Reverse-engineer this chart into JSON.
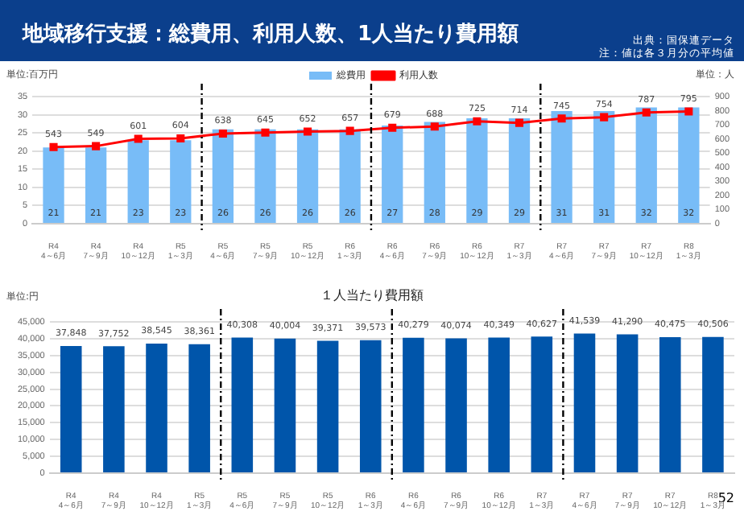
{
  "chart_data": [
    {
      "type": "bar",
      "title": "地域移行支援：総費用、利用人数、1人当たり費用額",
      "ylabel": "単位:百万円",
      "y2label": "単位：人",
      "annotations": [
        "出典：国保連データ",
        "注：値は各３月分の平均値"
      ],
      "categories": [
        "R4\n4～6月",
        "R4\n7～9月",
        "R4\n10～12月",
        "R5\n1～3月",
        "R5\n4～6月",
        "R5\n7～9月",
        "R5\n10～12月",
        "R6\n1～3月",
        "R6\n4～6月",
        "R6\n7～9月",
        "R6\n10～12月",
        "R7\n1～3月",
        "R7\n4～6月",
        "R7\n7～9月",
        "R7\n10～12月",
        "R8\n1～3月"
      ],
      "series": [
        {
          "name": "総費用",
          "color": "#78bcf7",
          "values": [
            21,
            21,
            23,
            23,
            26,
            26,
            26,
            26,
            27,
            28,
            29,
            29,
            31,
            31,
            32,
            32
          ]
        },
        {
          "name": "利用人数",
          "type": "line",
          "axis": "y2",
          "color": "#ff0000",
          "marker": "square",
          "values": [
            543,
            549,
            601,
            604,
            638,
            645,
            652,
            657,
            679,
            688,
            725,
            714,
            745,
            754,
            787,
            795
          ]
        }
      ],
      "ylim": [
        0,
        35
      ],
      "yticks": [
        0,
        5,
        10,
        15,
        20,
        25,
        30,
        35
      ],
      "y2lim": [
        0,
        900
      ],
      "y2ticks": [
        0,
        100,
        200,
        300,
        400,
        500,
        600,
        700,
        800,
        900
      ],
      "data_labels": true,
      "grid": "y",
      "legend": "top"
    },
    {
      "type": "bar",
      "title": "１人当たり費用額",
      "ylabel": "単位:円",
      "annotations": [
        "52"
      ],
      "categories": [
        "R4\n4～6月",
        "R4\n7～9月",
        "R4\n10～12月",
        "R5\n1～3月",
        "R5\n4～6月",
        "R5\n7～9月",
        "R5\n10～12月",
        "R6\n1～3月",
        "R6\n4～6月",
        "R6\n7～9月",
        "R6\n10～12月",
        "R7\n1～3月",
        "R7\n4～6月",
        "R7\n7～9月",
        "R7\n10～12月",
        "R8\n1～3月"
      ],
      "color": "#0055aa",
      "values": [
        37848,
        37752,
        38545,
        38361,
        40308,
        40004,
        39371,
        39573,
        40279,
        40074,
        40349,
        40627,
        41539,
        41290,
        40475,
        40506
      ],
      "value_labels": [
        "37,848",
        "37,752",
        "38,545",
        "38,361",
        "40,308",
        "40,004",
        "39,371",
        "39,573",
        "40,279",
        "40,074",
        "40,349",
        "40,627",
        "41,539",
        "41,290",
        "40,475",
        "40,506"
      ],
      "ylim": [
        0,
        45000
      ],
      "yticks": [
        0,
        {
          "value": 5000,
          "label": "5,000"
        },
        {
          "value": 10000,
          "label": "10,000"
        },
        {
          "value": 15000,
          "label": "15,000"
        },
        {
          "value": 20000,
          "label": "20,000"
        },
        {
          "value": 25000,
          "label": "25,000"
        },
        {
          "value": 30000,
          "label": "30,000"
        },
        {
          "value": 35000,
          "label": "35,000"
        },
        {
          "value": 40000,
          "label": "40,000"
        },
        {
          "value": 45000,
          "label": "45,000"
        }
      ],
      "grid": "y",
      "legend": false
    }
  ]
}
